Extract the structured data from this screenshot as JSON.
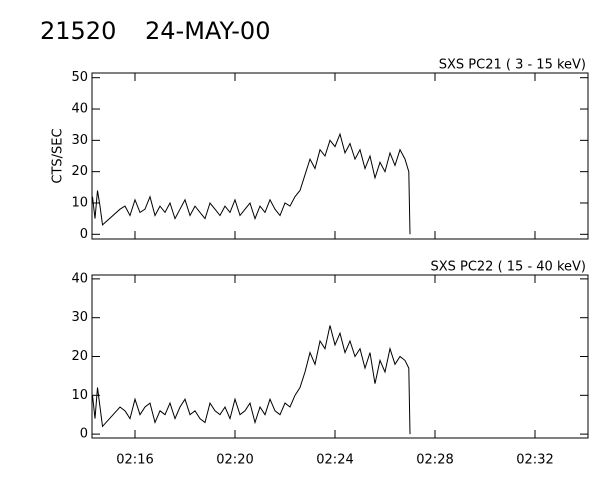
{
  "header": {
    "id": "21520",
    "date": "24-MAY-00"
  },
  "chart_data": [
    {
      "type": "line",
      "title": "SXS PC21  (  3 - 15 keV)",
      "ylabel": "CTS/SEC",
      "color": "#000000",
      "xlim": [
        14.28,
        34.12
      ],
      "xticks": [
        {
          "value": 16,
          "label": "02:16"
        },
        {
          "value": 20,
          "label": "02:20"
        },
        {
          "value": 24,
          "label": "02:24"
        },
        {
          "value": 28,
          "label": "02:28"
        },
        {
          "value": 32,
          "label": "02:32"
        }
      ],
      "ylim": [
        -1.5,
        51.5
      ],
      "yticks": [
        0,
        10,
        20,
        30,
        40,
        50
      ],
      "x": [
        14.3,
        14.4,
        14.5,
        14.6,
        14.7,
        15.4,
        15.6,
        15.8,
        16.0,
        16.2,
        16.4,
        16.6,
        16.8,
        17.0,
        17.2,
        17.4,
        17.6,
        17.8,
        18.0,
        18.2,
        18.4,
        18.6,
        18.8,
        19.0,
        19.2,
        19.4,
        19.6,
        19.8,
        20.0,
        20.2,
        20.4,
        20.6,
        20.8,
        21.0,
        21.2,
        21.4,
        21.6,
        21.8,
        22.0,
        22.2,
        22.4,
        22.6,
        22.8,
        23.0,
        23.2,
        23.4,
        23.6,
        23.8,
        24.0,
        24.2,
        24.4,
        24.6,
        24.8,
        25.0,
        25.2,
        25.4,
        25.6,
        25.8,
        26.0,
        26.2,
        26.4,
        26.6,
        26.8,
        26.95,
        27.0
      ],
      "values": [
        12,
        5,
        14,
        9,
        3,
        8,
        9,
        6,
        11,
        7,
        8,
        12,
        6,
        9,
        7,
        10,
        5,
        8,
        11,
        6,
        9,
        7,
        5,
        10,
        8,
        6,
        9,
        7,
        11,
        6,
        8,
        10,
        5,
        9,
        7,
        11,
        8,
        6,
        10,
        9,
        12,
        14,
        19,
        24,
        21,
        27,
        25,
        30,
        28,
        32,
        26,
        29,
        24,
        27,
        21,
        25,
        18,
        23,
        20,
        26,
        22,
        27,
        24,
        20,
        0
      ]
    },
    {
      "type": "line",
      "title": "SXS PC22  ( 15 - 40 keV)",
      "color": "#000000",
      "xlim": [
        14.28,
        34.12
      ],
      "xticks": [
        {
          "value": 16,
          "label": "02:16"
        },
        {
          "value": 20,
          "label": "02:20"
        },
        {
          "value": 24,
          "label": "02:24"
        },
        {
          "value": 28,
          "label": "02:28"
        },
        {
          "value": 32,
          "label": "02:32"
        }
      ],
      "ylim": [
        -1,
        41
      ],
      "yticks": [
        0,
        10,
        20,
        30,
        40
      ],
      "x": [
        14.3,
        14.4,
        14.5,
        14.6,
        14.7,
        15.4,
        15.6,
        15.8,
        16.0,
        16.2,
        16.4,
        16.6,
        16.8,
        17.0,
        17.2,
        17.4,
        17.6,
        17.8,
        18.0,
        18.2,
        18.4,
        18.6,
        18.8,
        19.0,
        19.2,
        19.4,
        19.6,
        19.8,
        20.0,
        20.2,
        20.4,
        20.6,
        20.8,
        21.0,
        21.2,
        21.4,
        21.6,
        21.8,
        22.0,
        22.2,
        22.4,
        22.6,
        22.8,
        23.0,
        23.2,
        23.4,
        23.6,
        23.8,
        24.0,
        24.2,
        24.4,
        24.6,
        24.8,
        25.0,
        25.2,
        25.4,
        25.6,
        25.8,
        26.0,
        26.2,
        26.4,
        26.6,
        26.8,
        26.95,
        27.0
      ],
      "values": [
        10,
        4,
        12,
        7,
        2,
        7,
        6,
        4,
        9,
        5,
        7,
        8,
        3,
        6,
        5,
        8,
        4,
        7,
        9,
        5,
        6,
        4,
        3,
        8,
        6,
        5,
        7,
        4,
        9,
        5,
        6,
        8,
        3,
        7,
        5,
        9,
        6,
        5,
        8,
        7,
        10,
        12,
        16,
        21,
        18,
        24,
        22,
        28,
        23,
        26,
        21,
        24,
        20,
        22,
        17,
        21,
        13,
        19,
        16,
        22,
        18,
        20,
        19,
        17,
        0
      ]
    }
  ]
}
